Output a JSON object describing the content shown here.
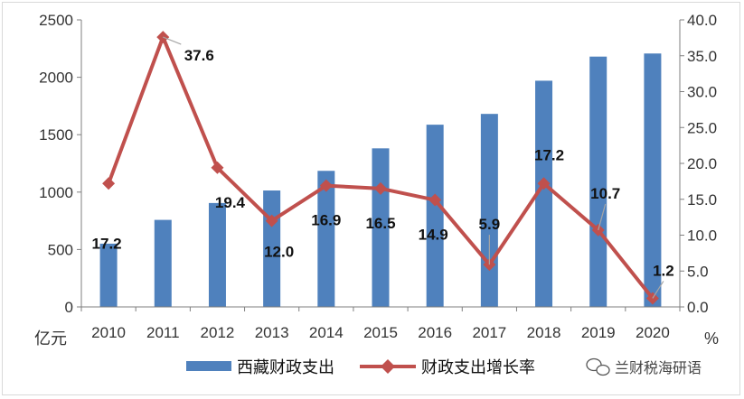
{
  "chart_data": {
    "type": "bar",
    "categories": [
      "2010",
      "2011",
      "2012",
      "2013",
      "2014",
      "2015",
      "2016",
      "2017",
      "2018",
      "2019",
      "2020"
    ],
    "series": [
      {
        "name": "西藏财政支出",
        "type": "bar",
        "axis": "left",
        "color": "#4f81bd",
        "values": [
          551,
          758,
          905,
          1014,
          1185,
          1381,
          1587,
          1681,
          1970,
          2180,
          2207
        ]
      },
      {
        "name": "财政支出增长率",
        "type": "line",
        "axis": "right",
        "color": "#c0504d",
        "values": [
          17.2,
          37.6,
          19.4,
          12.0,
          16.9,
          16.5,
          14.9,
          5.9,
          17.2,
          10.7,
          1.2
        ],
        "labels": [
          "17.2",
          "37.6",
          "19.4",
          "12.0",
          "16.9",
          "16.5",
          "14.9",
          "5.9",
          "17.2",
          "10.7",
          "1.2"
        ]
      }
    ],
    "y_left": {
      "unit": "亿元",
      "ylim": [
        0,
        2500
      ],
      "ticks": [
        "0",
        "500",
        "1000",
        "1500",
        "2000",
        "2500"
      ]
    },
    "y_right": {
      "unit": "%",
      "ylim": [
        0,
        40
      ],
      "ticks": [
        "0.0",
        "5.0",
        "10.0",
        "15.0",
        "20.0",
        "25.0",
        "30.0",
        "35.0",
        "40.0"
      ]
    },
    "grid": false,
    "legend_position": "bottom"
  },
  "watermark": {
    "text": "兰财税海研语",
    "icon": "wechat-icon"
  }
}
